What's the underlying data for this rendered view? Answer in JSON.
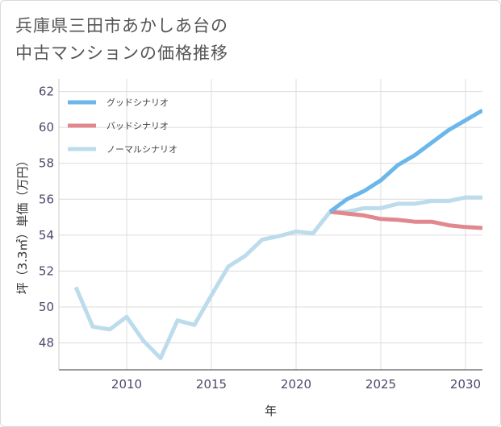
{
  "title": {
    "line1": "兵庫県三田市あかしあ台の",
    "line2": "中古マンションの価格推移"
  },
  "chart_data": {
    "type": "line",
    "title": "兵庫県三田市あかしあ台の中古マンションの価格推移",
    "xlabel": "年",
    "ylabel": "坪（3.3㎡）単価（万円）",
    "xlim": [
      2006,
      2031
    ],
    "ylim": [
      46.5,
      62.7
    ],
    "xticks": [
      2010,
      2015,
      2020,
      2025,
      2030
    ],
    "yticks": [
      48,
      50,
      52,
      54,
      56,
      58,
      60,
      62
    ],
    "grid": true,
    "legend_position": "top-left",
    "series": [
      {
        "name": "グッドシナリオ",
        "color": "#6bb6ea",
        "x": [
          2022,
          2023,
          2024,
          2025,
          2026,
          2027,
          2028,
          2029,
          2030,
          2031
        ],
        "values": [
          55.3,
          56.0,
          56.45,
          57.05,
          57.9,
          58.45,
          59.15,
          59.85,
          60.4,
          60.95
        ]
      },
      {
        "name": "バッドシナリオ",
        "color": "#e0888e",
        "x": [
          2022,
          2023,
          2024,
          2025,
          2026,
          2027,
          2028,
          2029,
          2030,
          2031
        ],
        "values": [
          55.3,
          55.2,
          55.1,
          54.9,
          54.85,
          54.75,
          54.75,
          54.55,
          54.45,
          54.4
        ]
      },
      {
        "name": "ノーマルシナリオ",
        "color": "#bcdcec",
        "x": [
          2007,
          2008,
          2009,
          2010,
          2011,
          2012,
          2013,
          2014,
          2015,
          2016,
          2017,
          2018,
          2019,
          2020,
          2021,
          2022,
          2023,
          2024,
          2025,
          2026,
          2027,
          2028,
          2029,
          2030,
          2031
        ],
        "values": [
          51.1,
          48.9,
          48.75,
          49.45,
          48.1,
          47.15,
          49.25,
          49.0,
          50.65,
          52.25,
          52.85,
          53.75,
          53.95,
          54.2,
          54.1,
          55.3,
          55.3,
          55.5,
          55.5,
          55.75,
          55.75,
          55.9,
          55.9,
          56.1,
          56.1
        ]
      }
    ]
  }
}
